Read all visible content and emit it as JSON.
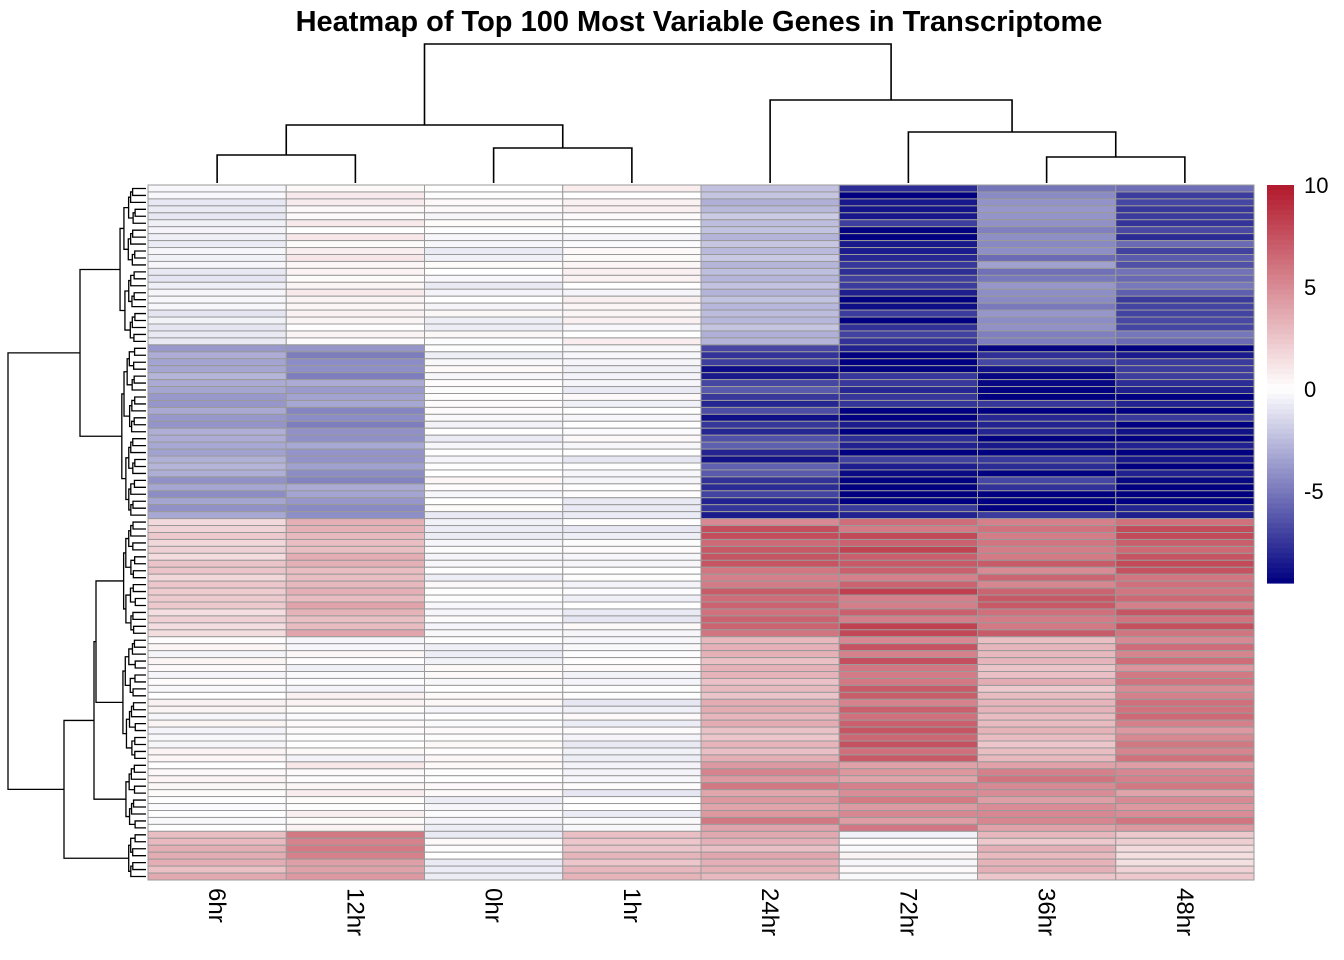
{
  "chart_data": {
    "type": "heatmap",
    "title": "Heatmap of Top 100 Most Variable Genes in Transcriptome",
    "columns": [
      "6hr",
      "12hr",
      "0hr",
      "1hr",
      "24hr",
      "72hr",
      "36hr",
      "48hr"
    ],
    "color_scale": {
      "min": -9.5,
      "max": 10,
      "low": "#000080",
      "mid": "#ffffff",
      "high": "#b2182b",
      "ticks": [
        10,
        5,
        0,
        -5
      ],
      "legend": "right"
    },
    "row_clusters": [
      {
        "rows": 23,
        "values": [
          -0.5,
          0.5,
          -0.2,
          0.2,
          -2.5,
          -8.5,
          -4.5,
          -6.5
        ]
      },
      {
        "rows": 25,
        "values": [
          -3.5,
          -4,
          -0.2,
          -0.3,
          -7.5,
          -9,
          -8.5,
          -9
        ]
      },
      {
        "rows": 17,
        "values": [
          2,
          3.5,
          -0.2,
          -0.3,
          6.5,
          7,
          6,
          6.5
        ]
      },
      {
        "rows": 18,
        "values": [
          0,
          0,
          -0.2,
          -0.3,
          3,
          6.5,
          3,
          5.5
        ]
      },
      {
        "rows": 10,
        "values": [
          0,
          0.5,
          -0.2,
          -0.3,
          5,
          5,
          5,
          5
        ]
      },
      {
        "rows": 7,
        "values": [
          3.5,
          5,
          -0.2,
          3,
          3.5,
          0,
          3,
          2
        ]
      }
    ]
  }
}
